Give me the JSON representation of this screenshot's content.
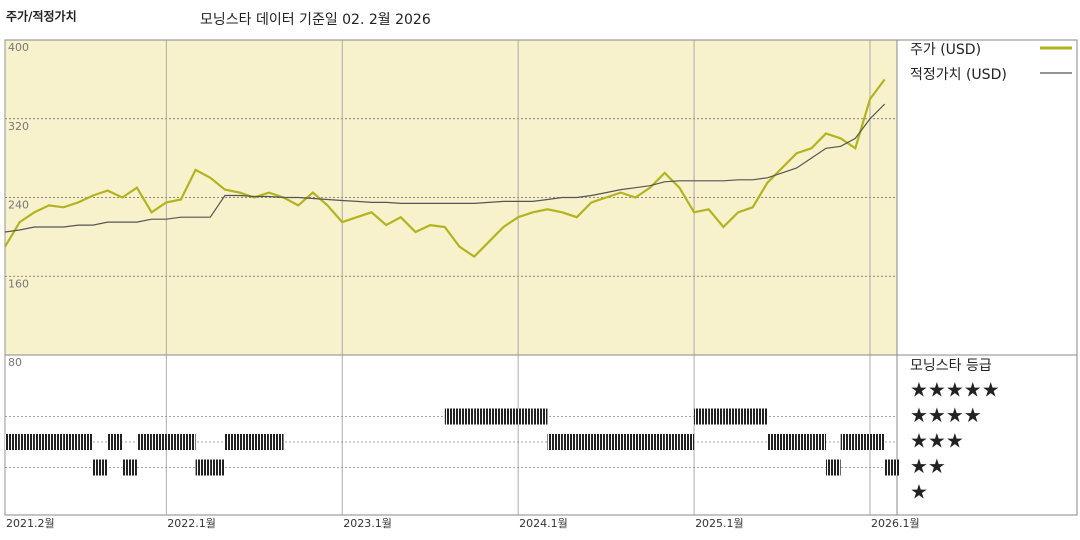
{
  "chart_data": {
    "type": "line",
    "title": "주가/적정가치",
    "subtitle": "모닝스타 데이터 기준일 02. 2월 2026",
    "x": [
      "2021.02",
      "2021.03",
      "2021.04",
      "2021.05",
      "2021.06",
      "2021.07",
      "2021.08",
      "2021.09",
      "2021.10",
      "2021.11",
      "2021.12",
      "2022.01",
      "2022.02",
      "2022.03",
      "2022.04",
      "2022.05",
      "2022.06",
      "2022.07",
      "2022.08",
      "2022.09",
      "2022.10",
      "2022.11",
      "2022.12",
      "2023.01",
      "2023.02",
      "2023.03",
      "2023.04",
      "2023.05",
      "2023.06",
      "2023.07",
      "2023.08",
      "2023.09",
      "2023.10",
      "2023.11",
      "2023.12",
      "2024.01",
      "2024.02",
      "2024.03",
      "2024.04",
      "2024.05",
      "2024.06",
      "2024.07",
      "2024.08",
      "2024.09",
      "2024.10",
      "2024.11",
      "2024.12",
      "2025.01",
      "2025.02",
      "2025.03",
      "2025.04",
      "2025.05",
      "2025.06",
      "2025.07",
      "2025.08",
      "2025.09",
      "2025.10",
      "2025.11",
      "2025.12",
      "2026.01",
      "2026.02"
    ],
    "series": [
      {
        "name": "주가 (USD)",
        "color": "#b3b31f",
        "values": [
          190,
          215,
          225,
          232,
          230,
          235,
          242,
          247,
          240,
          250,
          225,
          235,
          238,
          268,
          260,
          248,
          245,
          240,
          245,
          240,
          232,
          245,
          232,
          215,
          220,
          225,
          212,
          220,
          205,
          212,
          210,
          190,
          180,
          195,
          210,
          220,
          225,
          228,
          225,
          220,
          235,
          240,
          245,
          240,
          250,
          265,
          250,
          225,
          228,
          210,
          225,
          230,
          255,
          270,
          285,
          290,
          305,
          300,
          290,
          340,
          360
        ]
      },
      {
        "name": "적정가치 (USD)",
        "color": "#555555",
        "values": [
          205,
          207,
          210,
          210,
          210,
          212,
          212,
          215,
          215,
          215,
          218,
          218,
          220,
          220,
          220,
          242,
          242,
          241,
          241,
          240,
          240,
          239,
          238,
          237,
          236,
          235,
          235,
          234,
          234,
          234,
          234,
          234,
          234,
          235,
          236,
          236,
          236,
          238,
          240,
          240,
          242,
          245,
          248,
          250,
          252,
          256,
          257,
          257,
          257,
          257,
          258,
          258,
          260,
          265,
          270,
          280,
          290,
          292,
          300,
          320,
          335
        ]
      }
    ],
    "ylim": [
      80,
      400
    ],
    "yticks": [
      80,
      160,
      240,
      320,
      400
    ],
    "xticks": [
      {
        "value": "2021.02",
        "label": "2021.2월"
      },
      {
        "value": "2022.01",
        "label": "2022.1월"
      },
      {
        "value": "2023.01",
        "label": "2023.1월"
      },
      {
        "value": "2024.01",
        "label": "2024.1월"
      },
      {
        "value": "2025.01",
        "label": "2025.1월"
      },
      {
        "value": "2026.01",
        "label": "2026.1월"
      }
    ],
    "grid": true,
    "ratings": {
      "title": "모닝스타 등급",
      "labels": [
        "★★★★★",
        "★★★★",
        "★★★",
        "★★",
        "★"
      ],
      "values": [
        3,
        3,
        3,
        3,
        3,
        3,
        2,
        3,
        2,
        3,
        3,
        3,
        3,
        2,
        2,
        3,
        3,
        3,
        3,
        null,
        null,
        null,
        null,
        null,
        null,
        null,
        null,
        null,
        null,
        null,
        4,
        4,
        4,
        4,
        4,
        4,
        4,
        3,
        3,
        3,
        3,
        3,
        3,
        3,
        3,
        3,
        3,
        4,
        4,
        4,
        4,
        4,
        3,
        3,
        3,
        3,
        2,
        3,
        3,
        3,
        2
      ]
    }
  }
}
